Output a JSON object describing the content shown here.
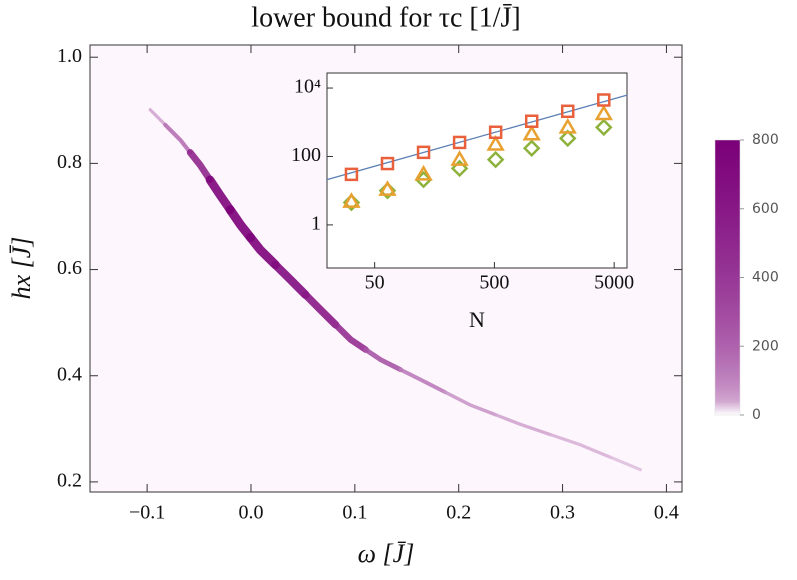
{
  "chart_data": [
    {
      "type": "density",
      "title": "lower bound for τc [1/J̄]",
      "xlabel": "ω [J̄]",
      "ylabel": "hx [J̄]",
      "xlim": [
        -0.155,
        0.415
      ],
      "ylim": [
        0.181,
        1.023
      ],
      "xticks": [
        {
          "value": -0.1,
          "label": "−0.1"
        },
        {
          "value": 0,
          "label": "0.0"
        },
        0.1,
        0.2,
        0.3,
        0.4
      ],
      "yticks": [
        0.2,
        0.4,
        0.6,
        0.8,
        {
          "value": 1,
          "label": "1.0"
        }
      ],
      "x": [
        -0.097,
        -0.068,
        -0.049,
        -0.03,
        -0.01,
        0.009,
        0.038,
        0.067,
        0.096,
        0.125,
        0.163,
        0.211,
        0.26,
        0.317,
        0.375
      ],
      "y": [
        0.901,
        0.844,
        0.797,
        0.741,
        0.684,
        0.637,
        0.581,
        0.524,
        0.468,
        0.43,
        0.393,
        0.345,
        0.308,
        0.27,
        0.223
      ],
      "values": [
        40,
        150,
        500,
        750,
        800,
        780,
        700,
        600,
        450,
        250,
        120,
        60,
        40,
        25,
        15
      ],
      "clim": [
        0,
        800
      ],
      "cticks": [
        0,
        200,
        400,
        600,
        800
      ],
      "colormap": [
        "#ffffff",
        "#7b0079"
      ]
    },
    {
      "type": "scatter",
      "xlabel": "N",
      "log": true,
      "xlim": [
        20,
        6400
      ],
      "ylim": [
        0.055,
        27500
      ],
      "xticks": [
        50,
        500,
        5000
      ],
      "yticks": [
        1,
        100,
        {
          "value": 10000,
          "label": "10⁴"
        }
      ],
      "x": [
        32,
        64,
        128,
        256,
        512,
        1024,
        2048,
        4096
      ],
      "series": [
        {
          "marker": "diamond",
          "color": "#8db23c",
          "values": [
            4.5,
            10,
            21,
            45,
            81,
            174,
            339,
            708
          ]
        },
        {
          "marker": "triangle",
          "color": "#e8a030",
          "values": [
            4.8,
            10.7,
            30,
            81,
            224,
            447,
            708,
            1740
          ]
        },
        {
          "marker": "square",
          "color": "#e8603c",
          "values": [
            30,
            62,
            132,
            257,
            510,
            1070,
            2090,
            4470
          ]
        }
      ],
      "fit": {
        "color": "#5b7fb5",
        "x": [
          20,
          6400
        ],
        "values": [
          21,
          6200
        ]
      }
    }
  ]
}
